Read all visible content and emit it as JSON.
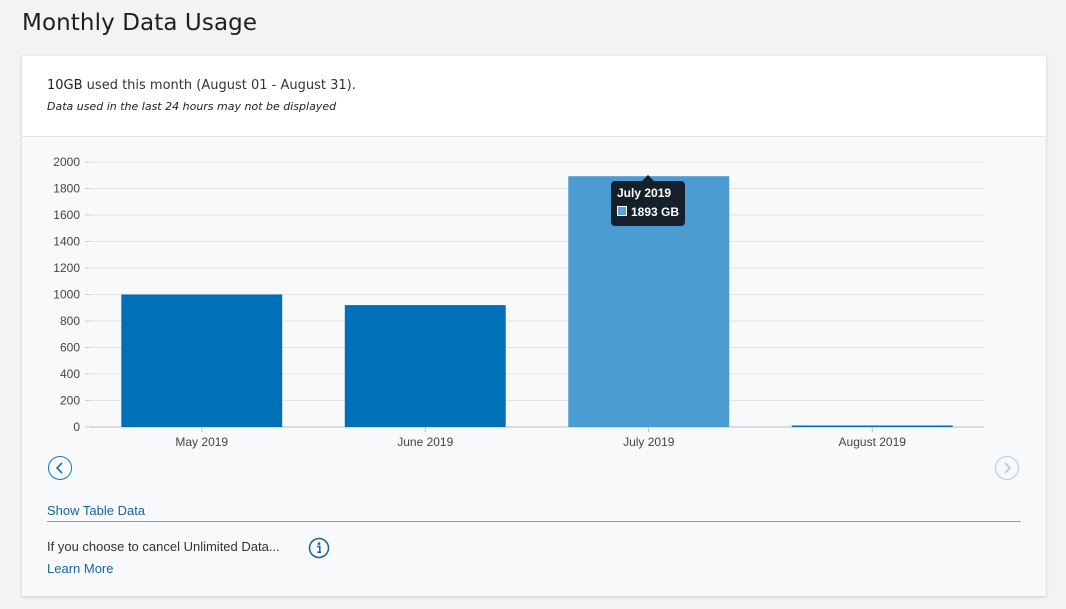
{
  "page": {
    "title": "Monthly Data Usage"
  },
  "summary": {
    "amount": "10GB",
    "period_text": " used this month (August 01 - August 31).",
    "note": "Data used in the last 24 hours may not be displayed"
  },
  "chart_data": {
    "type": "bar",
    "categories": [
      "May 2019",
      "June 2019",
      "July 2019",
      "August 2019"
    ],
    "values": [
      1000,
      920,
      1893,
      10
    ],
    "unit": "GB",
    "ylim": [
      0,
      2000
    ],
    "yticks": [
      0,
      200,
      400,
      600,
      800,
      1000,
      1200,
      1400,
      1600,
      1800,
      2000
    ],
    "grid": true,
    "colors": {
      "bar": "#0071b8",
      "highlight": "#4b9cd0"
    },
    "highlighted_index": 2
  },
  "tooltip": {
    "title": "July 2019",
    "value": "1893 GB"
  },
  "nav": {
    "prev_icon": "chevron-left-icon",
    "next_icon": "chevron-right-icon"
  },
  "links": {
    "show_table": "Show Table Data",
    "learn_more": "Learn More"
  },
  "cancel_notice": "If you choose to cancel Unlimited Data...",
  "icons": {
    "info": "info-icon"
  }
}
